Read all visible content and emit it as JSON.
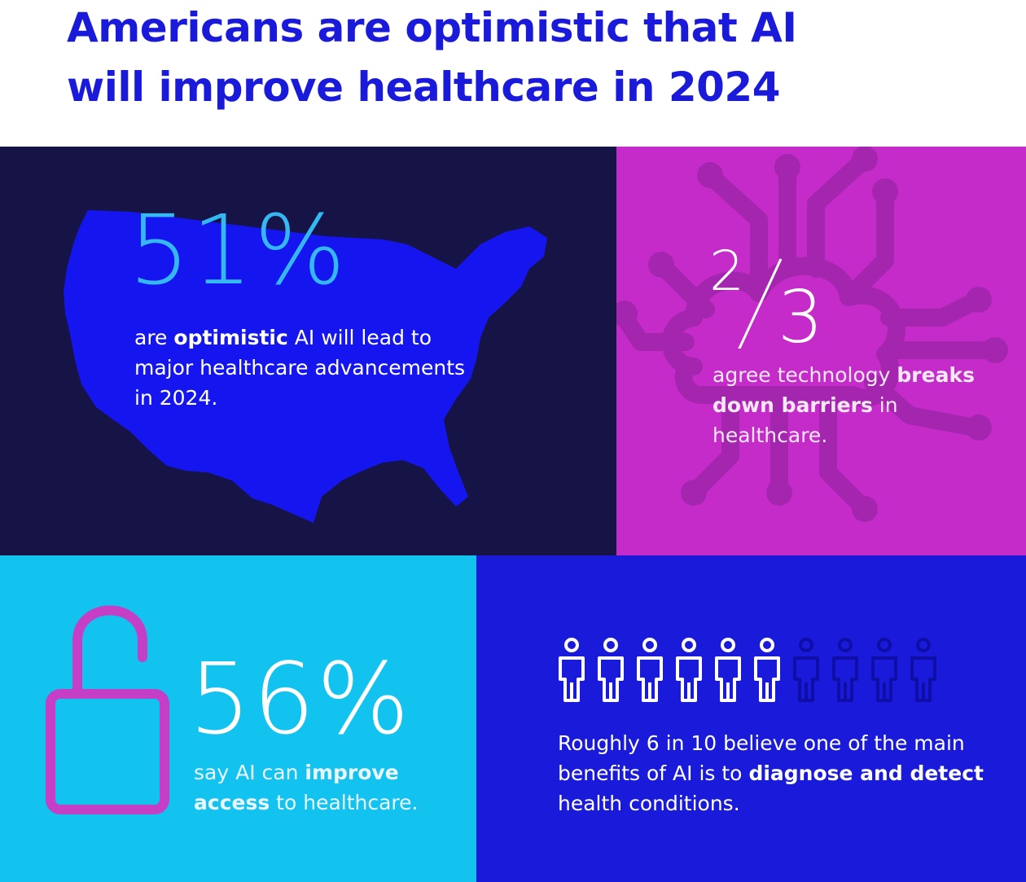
{
  "title": {
    "line1": "Americans are optimistic that AI",
    "line2": "will improve healthcare in 2024"
  },
  "panels": {
    "map": {
      "stat": "51%",
      "text_pre": "are ",
      "text_bold": "optimistic",
      "text_post": " AI will lead to major healthcare advancements in 2024.",
      "bg_color": "#161447",
      "map_color": "#1515f0",
      "icon": "us-map-icon"
    },
    "barriers": {
      "stat_numerator": "2",
      "stat_denominator": "3",
      "text_pre": "agree technology ",
      "text_bold": "breaks down barriers",
      "text_post": " in healthcare.",
      "bg_color": "#c42bc9",
      "icon": "circuit-cloud-icon"
    },
    "access": {
      "stat": "56%",
      "text_pre": "say AI can ",
      "text_bold": "improve access",
      "text_post": " to healthcare.",
      "bg_color": "#12c3f0",
      "icon": "unlocked-padlock-icon",
      "icon_color": "#c53fc6"
    },
    "diagnose": {
      "text_pre": "Roughly 6 in 10 believe one of the main benefits of AI is to ",
      "text_bold": "diagnose and detect",
      "text_post": " health conditions.",
      "bg_color": "#1a1adb",
      "people_total": 10,
      "people_highlighted": 6,
      "icon": "person-icon"
    }
  }
}
